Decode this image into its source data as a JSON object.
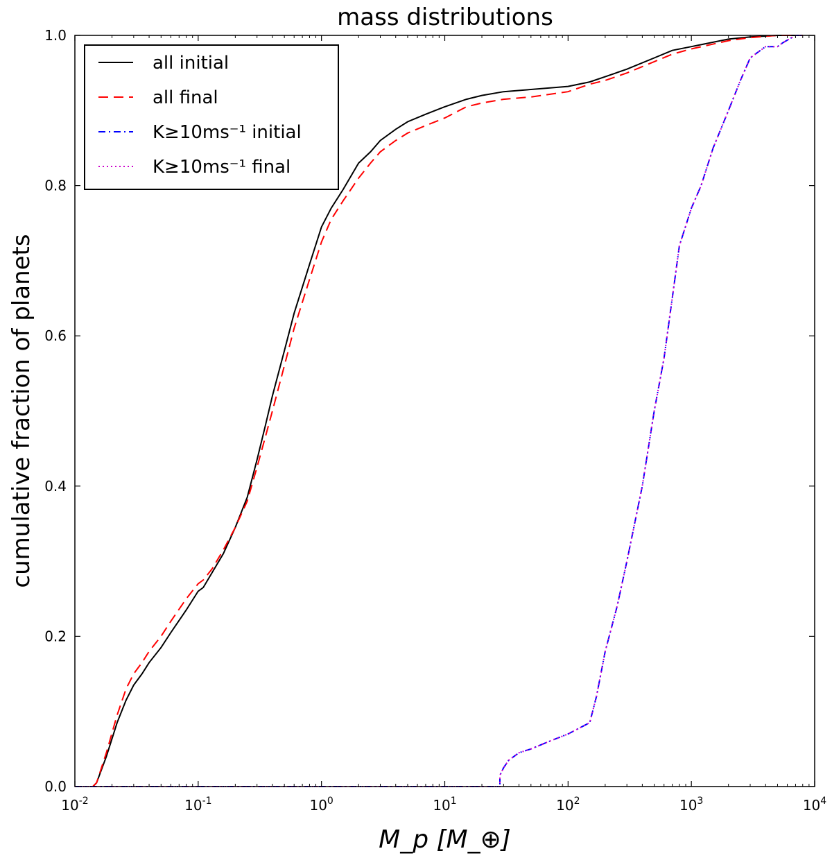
{
  "chart_data": {
    "type": "line",
    "title": "mass distributions",
    "xlabel": "M_p [M_⊕]",
    "ylabel": "cumulative fraction of planets",
    "xscale": "log",
    "xlim": [
      0.01,
      10000
    ],
    "ylim": [
      0.0,
      1.0
    ],
    "x_ticks": [
      {
        "value": 0.01,
        "base": "10",
        "exp": "-2"
      },
      {
        "value": 0.1,
        "base": "10",
        "exp": "-1"
      },
      {
        "value": 1,
        "base": "10",
        "exp": "0"
      },
      {
        "value": 10,
        "base": "10",
        "exp": "1"
      },
      {
        "value": 100,
        "base": "10",
        "exp": "2"
      },
      {
        "value": 1000,
        "base": "10",
        "exp": "3"
      },
      {
        "value": 10000,
        "base": "10",
        "exp": "4"
      }
    ],
    "y_ticks": [
      {
        "value": 0.0,
        "label": "0.0"
      },
      {
        "value": 0.2,
        "label": "0.2"
      },
      {
        "value": 0.4,
        "label": "0.4"
      },
      {
        "value": 0.6,
        "label": "0.6"
      },
      {
        "value": 0.8,
        "label": "0.8"
      },
      {
        "value": 1.0,
        "label": "1.0"
      }
    ],
    "grid": false,
    "legend_position": "top-left",
    "series": [
      {
        "name": "all initial",
        "color": "#000000",
        "style": "solid",
        "x": [
          0.014,
          0.015,
          0.018,
          0.022,
          0.026,
          0.03,
          0.035,
          0.04,
          0.05,
          0.06,
          0.08,
          0.1,
          0.11,
          0.13,
          0.16,
          0.2,
          0.25,
          0.3,
          0.35,
          0.4,
          0.5,
          0.6,
          0.8,
          1.0,
          1.2,
          1.5,
          2.0,
          2.5,
          3.0,
          4.0,
          5.0,
          7.0,
          10.0,
          15.0,
          20.0,
          30.0,
          50.0,
          100.0,
          150.0,
          200.0,
          300.0,
          500.0,
          700.0,
          1000.0,
          2000.0,
          3000.0,
          5000.0,
          8000.0
        ],
        "y": [
          0.0,
          0.005,
          0.04,
          0.085,
          0.115,
          0.135,
          0.15,
          0.165,
          0.185,
          0.205,
          0.235,
          0.26,
          0.265,
          0.285,
          0.31,
          0.345,
          0.385,
          0.435,
          0.48,
          0.52,
          0.58,
          0.63,
          0.695,
          0.745,
          0.77,
          0.795,
          0.83,
          0.845,
          0.86,
          0.875,
          0.885,
          0.895,
          0.905,
          0.915,
          0.92,
          0.925,
          0.928,
          0.932,
          0.938,
          0.945,
          0.955,
          0.97,
          0.98,
          0.985,
          0.995,
          0.998,
          1.0,
          1.0
        ]
      },
      {
        "name": "all final",
        "color": "#ff0000",
        "style": "dashed",
        "x": [
          0.014,
          0.015,
          0.018,
          0.022,
          0.026,
          0.03,
          0.035,
          0.04,
          0.05,
          0.06,
          0.08,
          0.1,
          0.11,
          0.13,
          0.16,
          0.2,
          0.25,
          0.3,
          0.35,
          0.4,
          0.5,
          0.6,
          0.8,
          1.0,
          1.2,
          1.5,
          2.0,
          2.5,
          3.0,
          4.0,
          5.0,
          7.0,
          10.0,
          15.0,
          20.0,
          30.0,
          50.0,
          100.0,
          150.0,
          200.0,
          300.0,
          500.0,
          700.0,
          1000.0,
          2000.0,
          3000.0,
          5000.0,
          8000.0
        ],
        "y": [
          0.0,
          0.005,
          0.045,
          0.095,
          0.13,
          0.15,
          0.165,
          0.18,
          0.2,
          0.22,
          0.25,
          0.27,
          0.275,
          0.29,
          0.315,
          0.345,
          0.38,
          0.425,
          0.465,
          0.5,
          0.56,
          0.61,
          0.675,
          0.725,
          0.755,
          0.78,
          0.81,
          0.83,
          0.845,
          0.86,
          0.87,
          0.88,
          0.89,
          0.905,
          0.91,
          0.915,
          0.918,
          0.925,
          0.935,
          0.94,
          0.95,
          0.965,
          0.975,
          0.982,
          0.993,
          0.997,
          1.0,
          1.0
        ]
      },
      {
        "name": "K≥10ms⁻¹ initial",
        "color": "#0000ff",
        "style": "dashdot",
        "x": [
          0.01,
          28.0,
          28.0,
          30.0,
          33.0,
          40.0,
          50.0,
          70.0,
          100.0,
          150.0,
          170.0,
          200.0,
          250.0,
          300.0,
          400.0,
          500.0,
          600.0,
          700.0,
          800.0,
          1000.0,
          1200.0,
          1500.0,
          2000.0,
          2500.0,
          3000.0,
          4000.0,
          5000.0,
          5500.0,
          7000.0,
          8000.0
        ],
        "y": [
          0.0,
          0.0,
          0.015,
          0.025,
          0.035,
          0.045,
          0.05,
          0.06,
          0.07,
          0.085,
          0.12,
          0.18,
          0.24,
          0.3,
          0.4,
          0.5,
          0.57,
          0.65,
          0.72,
          0.77,
          0.8,
          0.85,
          0.9,
          0.94,
          0.97,
          0.985,
          0.985,
          0.99,
          1.0,
          1.0
        ]
      },
      {
        "name": "K≥10ms⁻¹ final",
        "color": "#cc00cc",
        "style": "dotted",
        "x": [
          0.01,
          28.0,
          28.0,
          30.0,
          33.0,
          40.0,
          50.0,
          70.0,
          100.0,
          150.0,
          170.0,
          200.0,
          250.0,
          300.0,
          400.0,
          500.0,
          600.0,
          700.0,
          800.0,
          1000.0,
          1200.0,
          1500.0,
          2000.0,
          2500.0,
          3000.0,
          4000.0,
          5000.0,
          5500.0,
          7000.0,
          8000.0
        ],
        "y": [
          0.0,
          0.0,
          0.015,
          0.025,
          0.035,
          0.045,
          0.05,
          0.06,
          0.07,
          0.085,
          0.12,
          0.18,
          0.24,
          0.3,
          0.4,
          0.5,
          0.57,
          0.65,
          0.72,
          0.77,
          0.8,
          0.85,
          0.9,
          0.94,
          0.97,
          0.985,
          0.985,
          0.99,
          1.0,
          1.0
        ]
      }
    ]
  }
}
